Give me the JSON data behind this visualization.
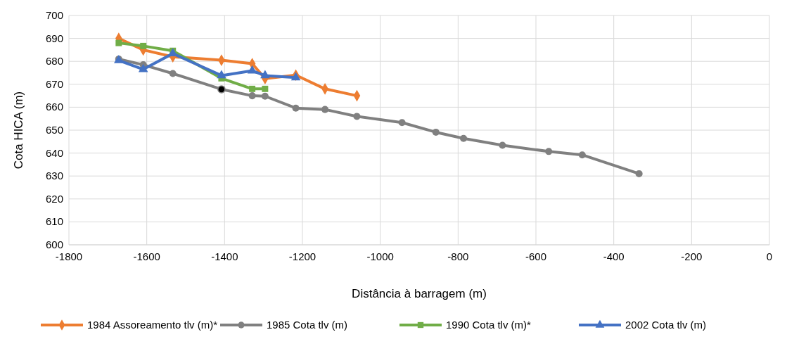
{
  "chart_data": {
    "type": "line",
    "xlabel": "Distância à barragem (m)",
    "ylabel": "Cota HICA (m)",
    "xlim": [
      -1800,
      0
    ],
    "xticks": [
      -1800,
      -1600,
      -1400,
      -1200,
      -1000,
      -800,
      -600,
      -400,
      -200,
      0
    ],
    "ylim": [
      600,
      700
    ],
    "yticks": [
      600,
      610,
      620,
      630,
      640,
      650,
      660,
      670,
      680,
      690,
      700
    ],
    "grid": true,
    "legend": "bottom",
    "series": [
      {
        "name": "1984 Assoreamento tlv (m)*",
        "color": "#ed7d31",
        "marker": "diamond",
        "x": [
          -1672,
          -1609,
          -1533,
          -1408,
          -1329,
          -1296,
          -1217,
          -1142,
          -1060
        ],
        "values": [
          690,
          685,
          682,
          680.5,
          679,
          672.5,
          674,
          668,
          665
        ]
      },
      {
        "name": "1985 Cota tlv (m)",
        "color": "#808080",
        "marker": "circle",
        "x": [
          -1672,
          -1609,
          -1533,
          -1408,
          -1329,
          -1296,
          -1217,
          -1142,
          -1060,
          -944,
          -857,
          -786,
          -686,
          -567,
          -481,
          -335
        ],
        "values": [
          681,
          678.5,
          674.7,
          667.8,
          665,
          664.8,
          659.6,
          659,
          656,
          653.3,
          649.1,
          646.4,
          643.4,
          640.7,
          639.2,
          631
        ],
        "colors": [
          "#808080",
          "#808080",
          "#808080",
          "#000000",
          "#808080",
          "#808080",
          "#808080",
          "#808080",
          "#808080",
          "#808080",
          "#808080",
          "#808080",
          "#808080",
          "#808080",
          "#808080",
          "#808080"
        ]
      },
      {
        "name": "1990 Cota tlv (m)*",
        "color": "#70ad47",
        "marker": "square",
        "x": [
          -1672,
          -1609,
          -1533,
          -1408,
          -1329,
          -1296
        ],
        "values": [
          688,
          686.7,
          684.6,
          672.6,
          668,
          668
        ]
      },
      {
        "name": "2002 Cota tlv (m)",
        "color": "#4472c4",
        "marker": "triangle",
        "x": [
          -1672,
          -1609,
          -1533,
          -1408,
          -1329,
          -1296,
          -1217
        ],
        "values": [
          680.4,
          676.5,
          683.4,
          673.8,
          675.9,
          673.8,
          672.9
        ]
      }
    ]
  }
}
